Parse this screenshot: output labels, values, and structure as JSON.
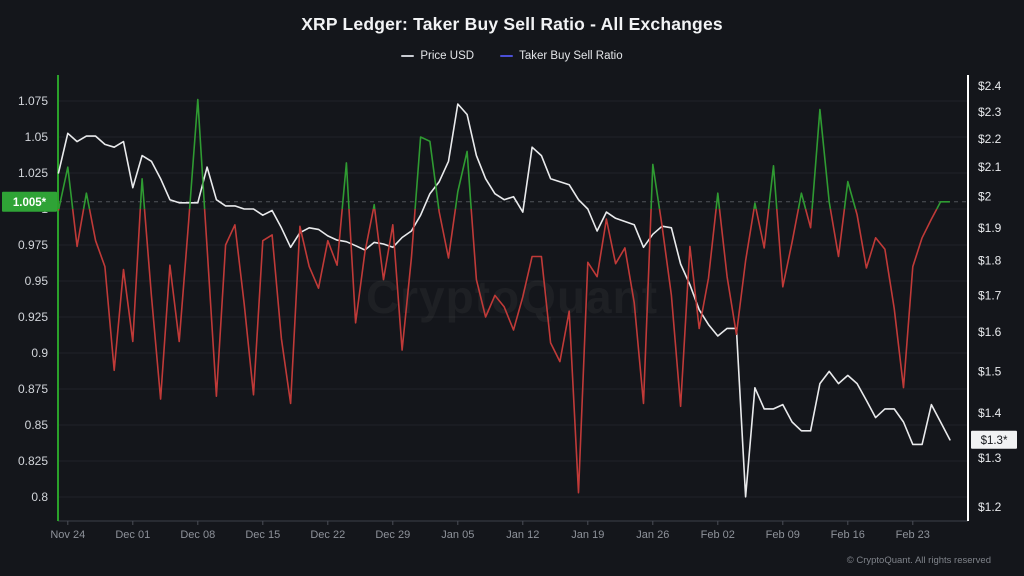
{
  "title": "XRP Ledger: Taker Buy Sell Ratio - All Exchanges",
  "legend": [
    {
      "label": "Price USD",
      "color": "#c9ccd2"
    },
    {
      "label": "Taker Buy Sell Ratio",
      "color": "#4b4fd6"
    }
  ],
  "badges": {
    "ratio_current": "1.005*",
    "price_current": "$1.3*"
  },
  "watermark": "CryptoQuant",
  "copyright": "© CryptoQuant. All rights reserved",
  "chart_data": {
    "type": "line",
    "title": "XRP Ledger: Taker Buy Sell Ratio - All Exchanges",
    "x_note": "daily points; first point one day before first tick label",
    "x_ticks": [
      {
        "index": 1,
        "label": "Nov 24"
      },
      {
        "index": 8,
        "label": "Dec 01"
      },
      {
        "index": 15,
        "label": "Dec 08"
      },
      {
        "index": 22,
        "label": "Dec 15"
      },
      {
        "index": 29,
        "label": "Dec 22"
      },
      {
        "index": 36,
        "label": "Dec 29"
      },
      {
        "index": 43,
        "label": "Jan 05"
      },
      {
        "index": 50,
        "label": "Jan 12"
      },
      {
        "index": 57,
        "label": "Jan 19"
      },
      {
        "index": 64,
        "label": "Jan 26"
      },
      {
        "index": 71,
        "label": "Feb 02"
      },
      {
        "index": 78,
        "label": "Feb 09"
      },
      {
        "index": 85,
        "label": "Feb 16"
      },
      {
        "index": 92,
        "label": "Feb 23"
      }
    ],
    "left_axis": {
      "name": "Taker Buy Sell Ratio",
      "scale": "linear",
      "range": [
        0.8,
        1.075
      ],
      "values": [
        1.075,
        1.05,
        1.025,
        1,
        0.975,
        0.95,
        0.925,
        0.9,
        0.875,
        0.85,
        0.825,
        0.8
      ],
      "labels": [
        "1.075",
        "1.05",
        "1.025",
        "1",
        "0.975",
        "0.95",
        "0.925",
        "0.9",
        "0.875",
        "0.85",
        "0.825",
        "0.8"
      ],
      "current": 1.005,
      "axis_color": "#2aa12a",
      "badge_color": "#2fa336"
    },
    "right_axis": {
      "name": "Price USD",
      "scale": "log",
      "range": [
        1.2,
        2.4
      ],
      "values": [
        2.4,
        2.3,
        2.2,
        2.1,
        2,
        1.9,
        1.8,
        1.7,
        1.6,
        1.5,
        1.4,
        1.3,
        1.2
      ],
      "labels": [
        "$2.4",
        "$2.3",
        "$2.2",
        "$2.1",
        "$2",
        "$1.9",
        "$1.8",
        "$1.7",
        "$1.6",
        "$1.5",
        "$1.4",
        "$1.3",
        "$1.2"
      ],
      "current": 1.34,
      "axis_color": "#ffffff",
      "badge_color": "#f1f2f3"
    },
    "series": [
      {
        "name": "Price USD",
        "axis": "right",
        "color": "#e9eaec",
        "values": [
          2.08,
          2.22,
          2.19,
          2.21,
          2.21,
          2.18,
          2.17,
          2.19,
          2.03,
          2.14,
          2.12,
          2.06,
          1.99,
          1.98,
          1.98,
          1.98,
          2.1,
          1.99,
          1.97,
          1.97,
          1.96,
          1.96,
          1.94,
          1.955,
          1.9,
          1.84,
          1.885,
          1.9,
          1.895,
          1.875,
          1.862,
          1.857,
          1.845,
          1.832,
          1.855,
          1.85,
          1.84,
          1.87,
          1.89,
          1.94,
          2.01,
          2.05,
          2.12,
          2.33,
          2.29,
          2.14,
          2.06,
          2.01,
          1.99,
          2.0,
          1.95,
          2.17,
          2.14,
          2.06,
          2.05,
          2.04,
          1.99,
          1.96,
          1.89,
          1.95,
          1.93,
          1.92,
          1.91,
          1.84,
          1.88,
          1.905,
          1.9,
          1.79,
          1.73,
          1.66,
          1.62,
          1.59,
          1.61,
          1.61,
          1.22,
          1.46,
          1.41,
          1.41,
          1.42,
          1.38,
          1.36,
          1.36,
          1.47,
          1.5,
          1.47,
          1.49,
          1.47,
          1.43,
          1.39,
          1.41,
          1.41,
          1.38,
          1.33,
          1.33,
          1.42,
          1.38,
          1.34
        ]
      },
      {
        "name": "Taker Buy Sell Ratio",
        "axis": "left",
        "threshold": 1.0,
        "color_above": "#2f9b32",
        "color_below": "#c03a38",
        "values": [
          0.999,
          1.029,
          0.974,
          1.011,
          0.978,
          0.96,
          0.888,
          0.958,
          0.908,
          1.021,
          0.94,
          0.868,
          0.961,
          0.908,
          0.99,
          1.076,
          0.973,
          0.87,
          0.975,
          0.989,
          0.934,
          0.871,
          0.978,
          0.982,
          0.91,
          0.865,
          0.988,
          0.96,
          0.945,
          0.978,
          0.961,
          1.032,
          0.921,
          0.97,
          1.003,
          0.951,
          0.989,
          0.902,
          0.966,
          1.05,
          1.047,
          0.998,
          0.966,
          1.012,
          1.04,
          0.951,
          0.925,
          0.94,
          0.932,
          0.916,
          0.939,
          0.967,
          0.967,
          0.907,
          0.894,
          0.929,
          0.803,
          0.963,
          0.953,
          0.993,
          0.962,
          0.973,
          0.935,
          0.865,
          1.031,
          0.988,
          0.94,
          0.863,
          0.974,
          0.917,
          0.952,
          1.011,
          0.953,
          0.913,
          0.964,
          1.004,
          0.973,
          1.03,
          0.946,
          0.977,
          1.011,
          0.987,
          1.069,
          1.005,
          0.967,
          1.019,
          0.996,
          0.959,
          0.98,
          0.972,
          0.931,
          0.876,
          0.96,
          0.98,
          0.993,
          1.005,
          1.005
        ]
      }
    ],
    "grid": "horizontal only",
    "legend_position": "top center",
    "current_value_line": {
      "series": "Taker Buy Sell Ratio",
      "value": 1.005,
      "style": "dashed"
    }
  },
  "colors": {
    "background": "#14161b",
    "grid": "rgba(255,255,255,0.06)",
    "x_axis_line": "#3c404a",
    "tick_label": "#8e929a",
    "y_label_left": "#d2d5da",
    "y_label_right": "#e8eaed"
  }
}
